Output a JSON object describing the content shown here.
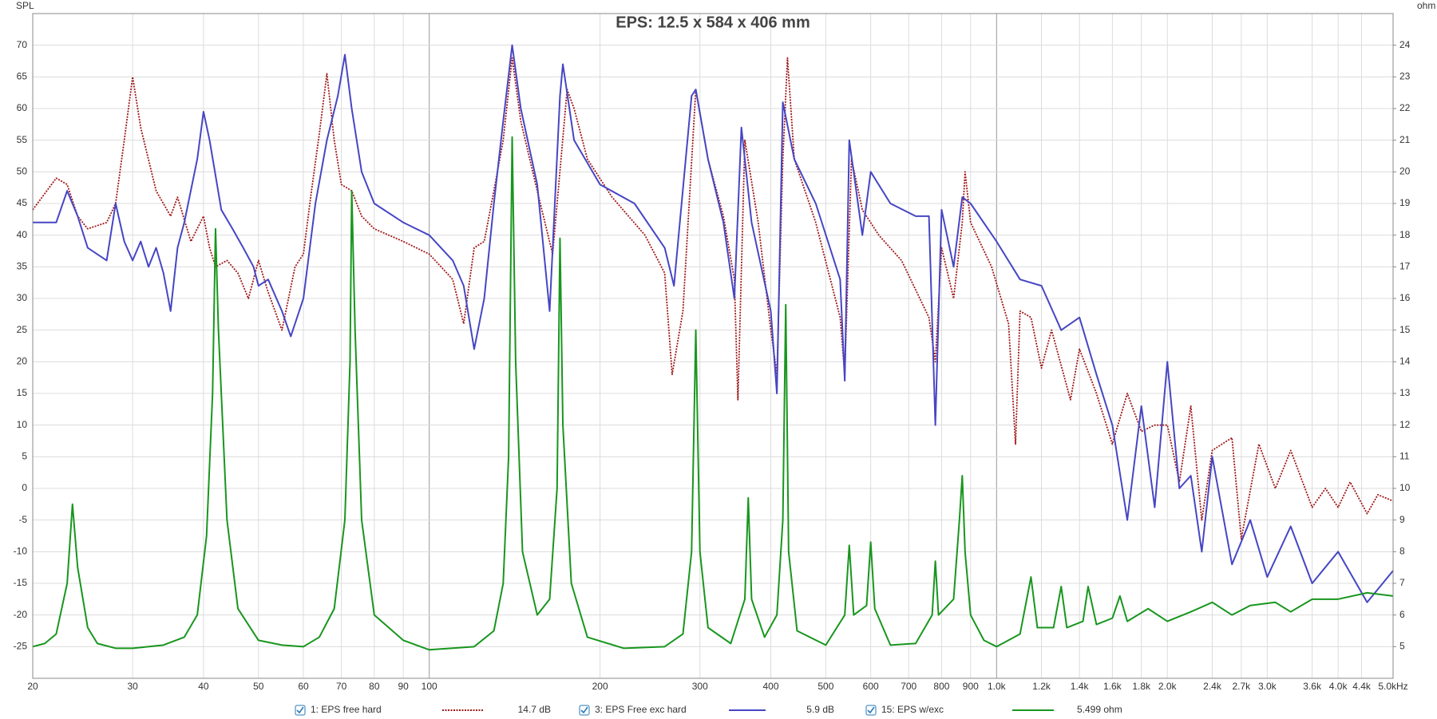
{
  "chart_data": {
    "type": "line",
    "title": "EPS: 12.5 x 584 x 406 mm",
    "ylabel": "SPL",
    "y2label": "ohm",
    "xscale": "log",
    "grid": true,
    "xlim": [
      20,
      5000
    ],
    "xticks": [
      20,
      30,
      40,
      50,
      60,
      70,
      80,
      90,
      100,
      200,
      300,
      400,
      500,
      600,
      700,
      800,
      900,
      {
        "value": 1000,
        "label": "1.0k"
      },
      {
        "value": 1200,
        "label": "1.2k"
      },
      {
        "value": 1400,
        "label": "1.4k"
      },
      {
        "value": 1600,
        "label": "1.6k"
      },
      {
        "value": 1800,
        "label": "1.8k"
      },
      {
        "value": 2000,
        "label": "2.0k"
      },
      {
        "value": 2400,
        "label": "2.4k"
      },
      {
        "value": 2700,
        "label": "2.7k"
      },
      {
        "value": 3000,
        "label": "3.0k"
      },
      {
        "value": 3600,
        "label": "3.6k"
      },
      {
        "value": 4000,
        "label": "4.0k"
      },
      {
        "value": 4400,
        "label": "4.4k"
      },
      {
        "value": 5000,
        "label": "5.0kHz"
      }
    ],
    "ylim": [
      -30,
      75
    ],
    "yticks": [
      -25,
      -20,
      -15,
      -10,
      -5,
      0,
      5,
      10,
      15,
      20,
      25,
      30,
      35,
      40,
      45,
      50,
      55,
      60,
      65,
      70
    ],
    "y2lim": [
      4,
      25
    ],
    "y2ticks": [
      5,
      6,
      7,
      8,
      9,
      10,
      11,
      12,
      13,
      14,
      15,
      16,
      17,
      18,
      19,
      20,
      21,
      22,
      23,
      24
    ],
    "series": [
      {
        "name": "1: EPS free hard",
        "level": "14.7 dB",
        "color": "#a01818",
        "dash": "dotted",
        "x": [
          20,
          22,
          23,
          24,
          25,
          27,
          28,
          29,
          30,
          31,
          33,
          35,
          36,
          38,
          40,
          41,
          42,
          44,
          46,
          48,
          50,
          52,
          55,
          58,
          60,
          62,
          64,
          66,
          68,
          70,
          73,
          76,
          80,
          90,
          100,
          110,
          115,
          120,
          125,
          130,
          135,
          140,
          145,
          155,
          165,
          175,
          180,
          190,
          210,
          240,
          260,
          268,
          280,
          295,
          310,
          330,
          345,
          350,
          360,
          380,
          400,
          410,
          420,
          428,
          440,
          480,
          530,
          540,
          555,
          580,
          620,
          680,
          760,
          780,
          800,
          840,
          870,
          880,
          900,
          980,
          1050,
          1080,
          1100,
          1150,
          1200,
          1250,
          1350,
          1400,
          1500,
          1600,
          1700,
          1800,
          1900,
          2000,
          2100,
          2200,
          2300,
          2400,
          2600,
          2700,
          2900,
          3100,
          3300,
          3600,
          3800,
          4000,
          4200,
          4500,
          4700,
          5000
        ],
        "values": [
          44,
          49,
          48,
          43,
          41,
          42,
          45,
          55,
          65,
          57,
          47,
          43,
          46,
          39,
          43,
          38,
          35,
          36,
          34,
          30,
          36,
          31,
          25,
          35,
          37,
          47,
          56,
          65.5,
          55,
          48,
          47,
          43,
          41,
          39,
          37,
          33,
          26,
          38,
          39,
          47,
          55,
          68,
          58,
          47,
          37,
          63,
          60,
          52,
          46,
          40,
          34,
          18,
          28,
          63,
          52,
          43,
          33,
          14,
          55,
          42,
          25,
          18,
          52,
          68,
          52,
          42,
          27,
          18,
          52,
          44,
          40,
          36,
          27,
          20,
          38,
          30,
          42,
          50,
          42,
          35,
          26,
          7,
          28,
          27,
          19,
          25,
          14,
          22,
          15,
          7,
          15,
          9,
          10,
          10,
          1,
          13,
          -5,
          6,
          8,
          -8,
          7,
          0,
          6,
          -3,
          0,
          -3,
          1,
          -4,
          -1,
          -2
        ]
      },
      {
        "name": "3: EPS Free exc hard",
        "level": "5.9 dB",
        "color": "#4646c4",
        "dash": "solid",
        "x": [
          20,
          22,
          23,
          24,
          25,
          27,
          28,
          29,
          30,
          31,
          32,
          33,
          34,
          35,
          36,
          37,
          39,
          40,
          41,
          43,
          45,
          47,
          49,
          50,
          52,
          55,
          57,
          60,
          63,
          66,
          69,
          71,
          73,
          76,
          80,
          90,
          100,
          110,
          115,
          120,
          125,
          130,
          135,
          140,
          145,
          155,
          163,
          170,
          172,
          180,
          200,
          230,
          260,
          270,
          290,
          295,
          310,
          330,
          345,
          355,
          370,
          400,
          410,
          420,
          440,
          480,
          530,
          540,
          550,
          580,
          600,
          650,
          720,
          760,
          780,
          800,
          840,
          870,
          900,
          1000,
          1100,
          1200,
          1300,
          1400,
          1500,
          1600,
          1700,
          1800,
          1900,
          2000,
          2100,
          2200,
          2300,
          2400,
          2600,
          2800,
          3000,
          3300,
          3600,
          4000,
          4500,
          5000
        ],
        "values": [
          42,
          42,
          47,
          43,
          38,
          36,
          45,
          39,
          36,
          39,
          35,
          38,
          34,
          28,
          38,
          42,
          52,
          59.5,
          55,
          44,
          41,
          38,
          35,
          32,
          33,
          28,
          24,
          30,
          45,
          55,
          62,
          68.5,
          60,
          50,
          45,
          42,
          40,
          36,
          32,
          22,
          30,
          45,
          58,
          70,
          60,
          48,
          28,
          62,
          67,
          55,
          48,
          45,
          38,
          32,
          62,
          63,
          52,
          42,
          30,
          57,
          42,
          28,
          15,
          61,
          52,
          45,
          33,
          17,
          55,
          40,
          50,
          45,
          43,
          43,
          10,
          44,
          35,
          46,
          45,
          39,
          33,
          32,
          25,
          27,
          18,
          10,
          -5,
          13,
          -3,
          20,
          0,
          2,
          -10,
          5,
          -12,
          -5,
          -14,
          -6,
          -15,
          -10,
          -18,
          -13
        ]
      },
      {
        "name": "15: EPS w/exc",
        "level": "5.499 ohm",
        "color": "#18961e",
        "dash": "solid",
        "axis": "y2",
        "x": [
          20,
          21,
          22,
          23,
          23.5,
          24,
          25,
          26,
          28,
          30,
          34,
          37,
          39,
          40.5,
          41.5,
          42,
          42.5,
          44,
          46,
          50,
          55,
          60,
          64,
          68,
          71,
          72.5,
          73,
          74,
          76,
          80,
          90,
          100,
          120,
          130,
          135,
          138,
          140,
          142,
          146,
          155,
          163,
          168,
          170,
          172,
          178,
          190,
          220,
          260,
          280,
          290,
          295,
          300,
          310,
          340,
          360,
          365,
          370,
          390,
          410,
          420,
          425,
          430,
          445,
          500,
          540,
          550,
          560,
          590,
          600,
          610,
          650,
          720,
          770,
          780,
          790,
          840,
          860,
          870,
          880,
          900,
          950,
          1000,
          1100,
          1150,
          1180,
          1260,
          1300,
          1330,
          1420,
          1450,
          1500,
          1600,
          1650,
          1700,
          1850,
          2000,
          2200,
          2400,
          2600,
          2800,
          3100,
          3300,
          3600,
          4000,
          4500,
          5000
        ],
        "values": [
          5.0,
          5.1,
          5.4,
          7.0,
          9.5,
          7.5,
          5.6,
          5.1,
          4.95,
          4.95,
          5.05,
          5.3,
          6.0,
          8.5,
          13,
          18.2,
          15,
          9,
          6.2,
          5.2,
          5.05,
          5.0,
          5.3,
          6.2,
          9,
          14,
          19.4,
          15,
          9,
          6,
          5.2,
          4.9,
          5.0,
          5.5,
          7,
          11,
          21.1,
          14,
          8,
          6,
          6.5,
          10,
          17.9,
          12,
          7,
          5.3,
          4.95,
          5.0,
          5.4,
          8,
          15.0,
          8,
          5.6,
          5.1,
          6.5,
          9.7,
          6.5,
          5.3,
          6.0,
          9,
          15.8,
          8,
          5.5,
          5.05,
          6.0,
          8.2,
          6,
          6.3,
          8.3,
          6.2,
          5.05,
          5.1,
          6.0,
          7.7,
          6.0,
          6.5,
          9,
          10.4,
          8,
          6,
          5.2,
          5.0,
          5.4,
          7.2,
          5.6,
          5.6,
          6.9,
          5.6,
          5.8,
          6.9,
          5.7,
          5.9,
          6.6,
          5.8,
          6.2,
          5.8,
          6.1,
          6.4,
          6.0,
          6.3,
          6.4,
          6.1,
          6.5,
          6.5,
          6.7,
          6.6
        ]
      }
    ]
  }
}
